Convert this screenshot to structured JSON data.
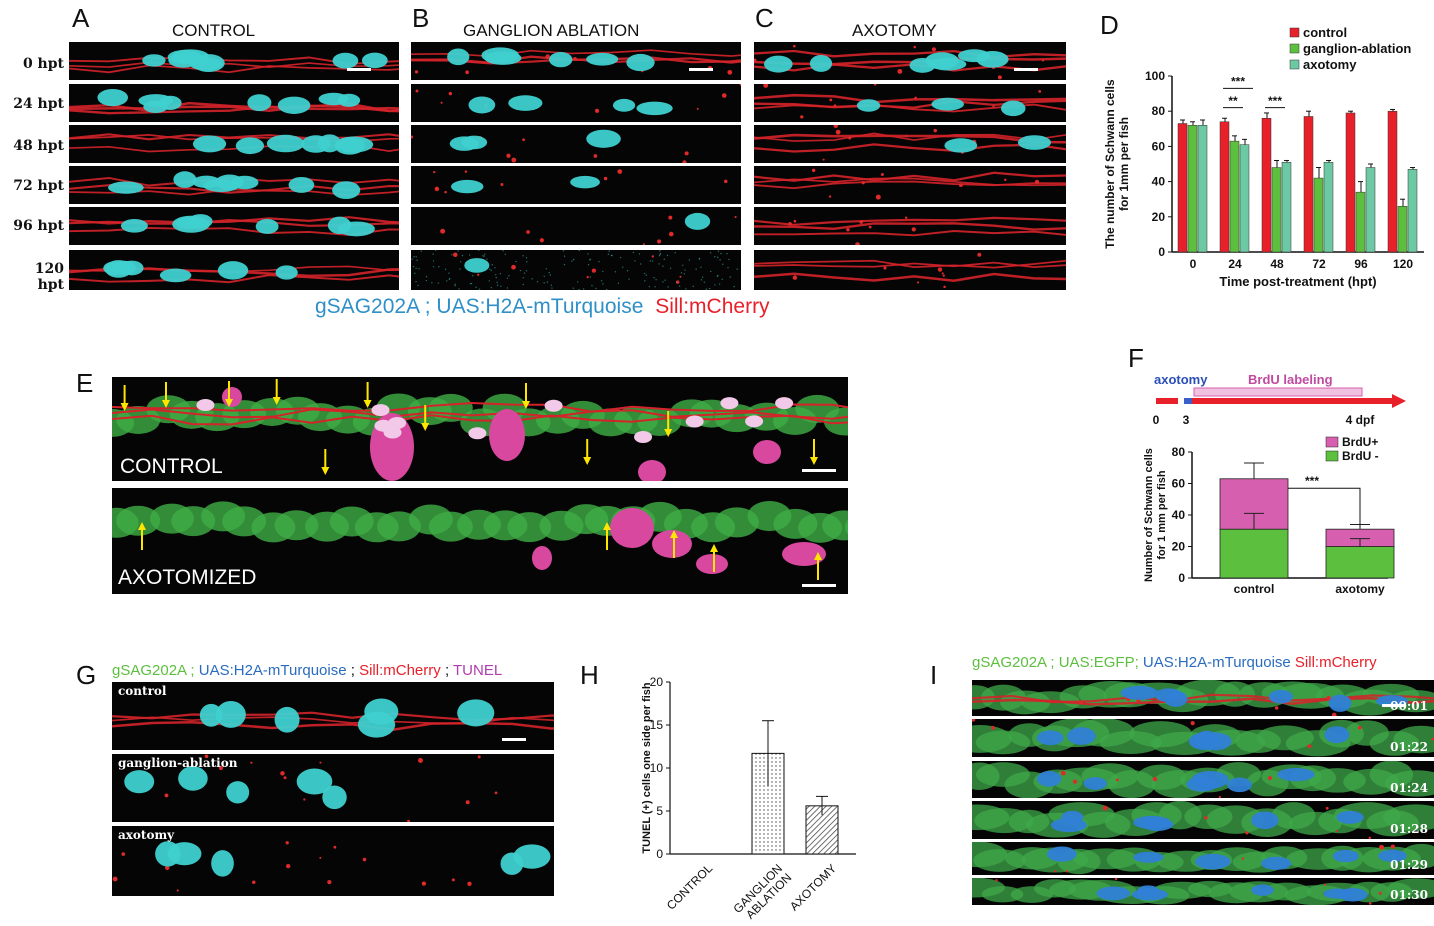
{
  "panels": {
    "A": {
      "letter": "A",
      "title": "CONTROL",
      "rows": [
        "0 hpt",
        "24 hpt",
        "48 hpt",
        "72 hpt",
        "96 hpt",
        "120 hpt"
      ]
    },
    "B": {
      "letter": "B",
      "title": "GANGLION ABLATION"
    },
    "C": {
      "letter": "C",
      "title": "AXOTOMY"
    },
    "D": {
      "letter": "D"
    },
    "E": {
      "letter": "E",
      "label_top": "CONTROL",
      "label_bottom": "AXOTOMIZED"
    },
    "F": {
      "letter": "F",
      "timeline": {
        "axotomy": "axotomy",
        "brdu": "BrdU labeling",
        "t0": "0",
        "t3": "3",
        "t4": "4 dpf"
      }
    },
    "G": {
      "letter": "G",
      "labels": [
        "control",
        "ganglion-ablation",
        "axotomy"
      ]
    },
    "H": {
      "letter": "H"
    },
    "I": {
      "letter": "I",
      "times": [
        "00:01",
        "01:22",
        "01:24",
        "01:28",
        "01:29",
        "01:30"
      ]
    }
  },
  "captions": {
    "abc_green": "gSAG202A ; UAS:H2A-mTurquoise",
    "abc_red": "Sill:mCherry",
    "g_green": "gSAG202A ;",
    "g_blue": "UAS:H2A-mTurquoise",
    "g_sep1": ";",
    "g_red": "Sill:mCherry",
    "g_sep2": ";",
    "g_magenta": "TUNEL",
    "i_green": "gSAG202A ; UAS:EGFP;",
    "i_blue": "UAS:H2A-mTurquoise",
    "i_red": "Sill:mCherry"
  },
  "colors": {
    "control": "#e8202a",
    "ganglion": "#5cbf3e",
    "axotomy": "#6dc8a4",
    "brdu_pos": "#d75fb0",
    "brdu_neg": "#5cbf3e"
  },
  "chart_data": [
    {
      "panel": "D",
      "type": "bar",
      "categories": [
        "0",
        "24",
        "48",
        "72",
        "96",
        "120"
      ],
      "series": [
        {
          "name": "control",
          "values": [
            73,
            74,
            76,
            77,
            79,
            80
          ],
          "errors": [
            2,
            2,
            3,
            3,
            1,
            1
          ]
        },
        {
          "name": "ganglion-ablation",
          "values": [
            72,
            63,
            48,
            42,
            34,
            26
          ],
          "errors": [
            2,
            3,
            4,
            6,
            6,
            4
          ]
        },
        {
          "name": "axotomy",
          "values": [
            72,
            61,
            51,
            51,
            48,
            47
          ],
          "errors": [
            3,
            3,
            1,
            1,
            2,
            1
          ]
        }
      ],
      "xlabel": "Time post-treatment (hpt)",
      "ylabel": "The number of Schwann cells for 1mm per fish",
      "ylim": [
        0,
        100
      ],
      "yticks": [
        "0",
        "20",
        "40",
        "60",
        "80",
        "100"
      ],
      "significance": [
        {
          "x": "24",
          "label": "***"
        },
        {
          "x": "24",
          "label": "**"
        },
        {
          "x": "48",
          "label": "***"
        }
      ],
      "legend": "top-right"
    },
    {
      "panel": "F",
      "type": "bar",
      "stacked": true,
      "categories": [
        "control",
        "axotomy"
      ],
      "series": [
        {
          "name": "BrdU+",
          "values": [
            32,
            11
          ],
          "errors": [
            10,
            3
          ]
        },
        {
          "name": "BrdU -",
          "values": [
            31,
            20
          ],
          "errors": [
            10,
            5
          ]
        }
      ],
      "ylabel": "Number of Schwann cells for 1 mm per fish",
      "ylim": [
        0,
        80
      ],
      "yticks": [
        "0",
        "20",
        "40",
        "60",
        "80"
      ],
      "significance": "***",
      "legend": "top-right"
    },
    {
      "panel": "H",
      "type": "bar",
      "categories": [
        "CONTROL",
        "GANGLION ABLATION",
        "AXOTOMY"
      ],
      "values": [
        0,
        11.7,
        5.6
      ],
      "errors": [
        0,
        3.8,
        1.1
      ],
      "ylabel": "TUNEL (+) cells one side per fish",
      "ylim": [
        0,
        20
      ],
      "yticks": [
        "0",
        "5",
        "10",
        "15",
        "20"
      ]
    }
  ]
}
